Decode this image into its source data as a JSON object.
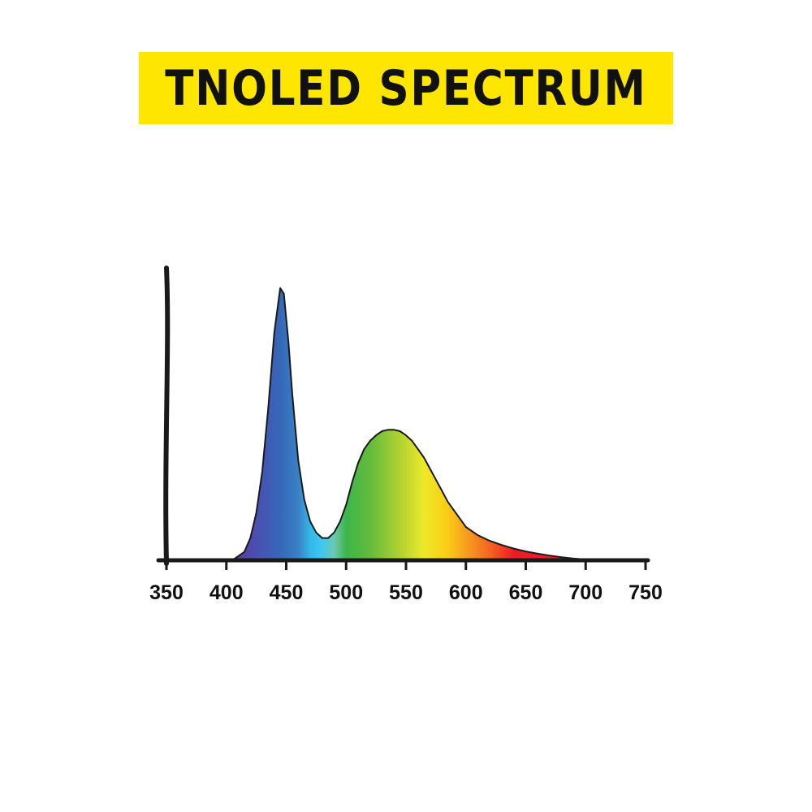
{
  "header": {
    "title": "TNOLED SPECTRUM"
  },
  "colors": {
    "banner": "#FFE600",
    "ink": "#1a1a1a"
  },
  "chart_data": {
    "type": "area",
    "title": "TNOLED SPECTRUM",
    "xlabel": "",
    "ylabel": "",
    "xlim": [
      350,
      750
    ],
    "ylim": [
      0,
      1
    ],
    "grid": false,
    "x_ticks": [
      350,
      400,
      450,
      500,
      550,
      600,
      650,
      700,
      750
    ],
    "x_tick_labels": [
      "350",
      "400",
      "450",
      "500",
      "550",
      "600",
      "650",
      "700",
      "750"
    ],
    "fill": "visible-spectrum-gradient",
    "x": [
      405,
      415,
      420,
      425,
      430,
      435,
      440,
      445,
      448,
      452,
      455,
      460,
      465,
      470,
      475,
      480,
      485,
      490,
      495,
      500,
      505,
      510,
      515,
      520,
      525,
      530,
      535,
      540,
      545,
      550,
      555,
      560,
      565,
      570,
      575,
      580,
      585,
      590,
      595,
      600,
      610,
      620,
      630,
      640,
      650,
      660,
      670,
      680,
      690,
      700,
      715,
      735
    ],
    "values": [
      0.0,
      0.03,
      0.08,
      0.17,
      0.32,
      0.55,
      0.82,
      0.98,
      0.96,
      0.78,
      0.6,
      0.36,
      0.22,
      0.14,
      0.1,
      0.08,
      0.08,
      0.1,
      0.14,
      0.2,
      0.28,
      0.35,
      0.4,
      0.43,
      0.45,
      0.465,
      0.47,
      0.47,
      0.465,
      0.45,
      0.43,
      0.4,
      0.37,
      0.33,
      0.29,
      0.25,
      0.21,
      0.18,
      0.15,
      0.12,
      0.09,
      0.07,
      0.055,
      0.042,
      0.032,
      0.024,
      0.017,
      0.011,
      0.006,
      0.003,
      0.001,
      0.0
    ]
  }
}
